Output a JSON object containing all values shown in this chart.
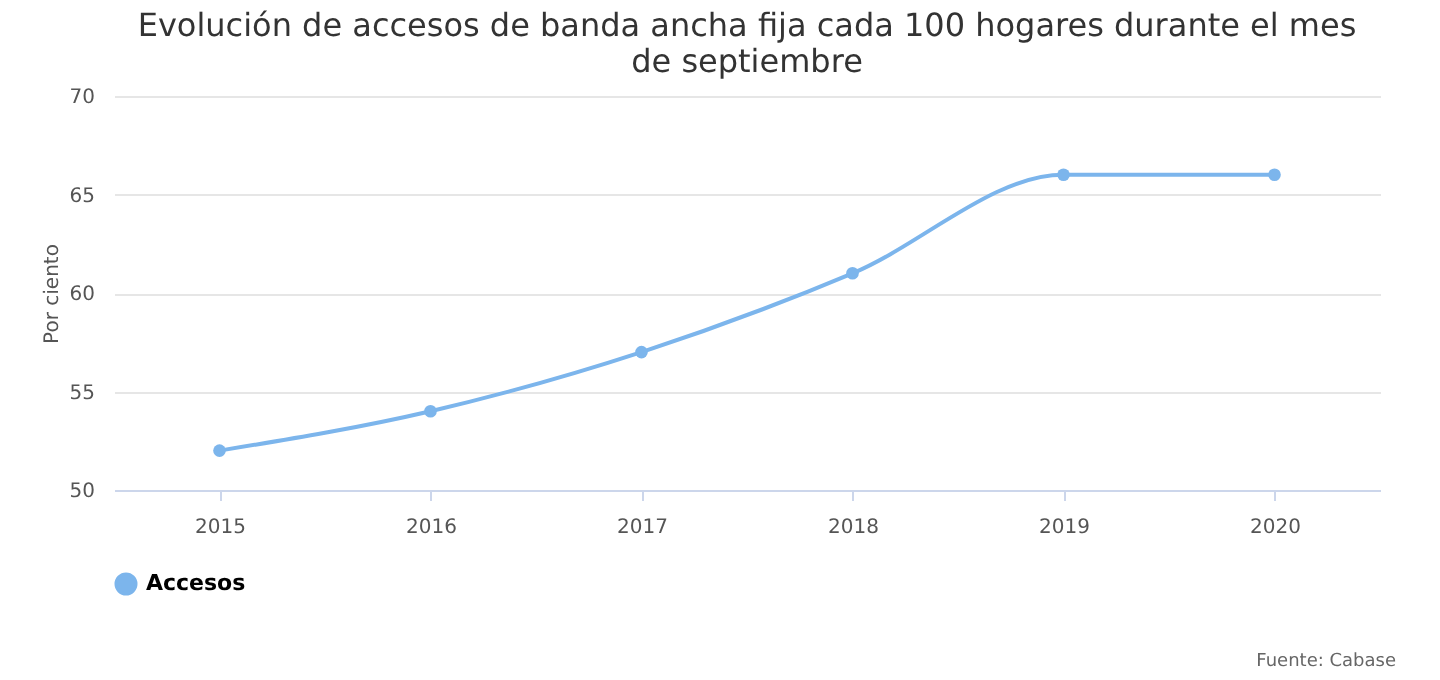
{
  "chart_data": {
    "type": "line",
    "title": "Evolución de accesos de banda ancha fija cada 100 hogares durante el mes de septiembre",
    "ylabel": "Por ciento",
    "categories": [
      "2015",
      "2016",
      "2017",
      "2018",
      "2019",
      "2020"
    ],
    "series": [
      {
        "name": "Accesos",
        "color": "#7cb5ec",
        "values": [
          52,
          54,
          57,
          61,
          66,
          66
        ]
      }
    ],
    "ylim": [
      50,
      70
    ],
    "yticks": [
      50,
      55,
      60,
      65,
      70
    ],
    "grid": "y",
    "legend": "bottom",
    "marker": "circle",
    "line_style": "solid",
    "annotations": [
      "Fuente: Cabase"
    ]
  }
}
